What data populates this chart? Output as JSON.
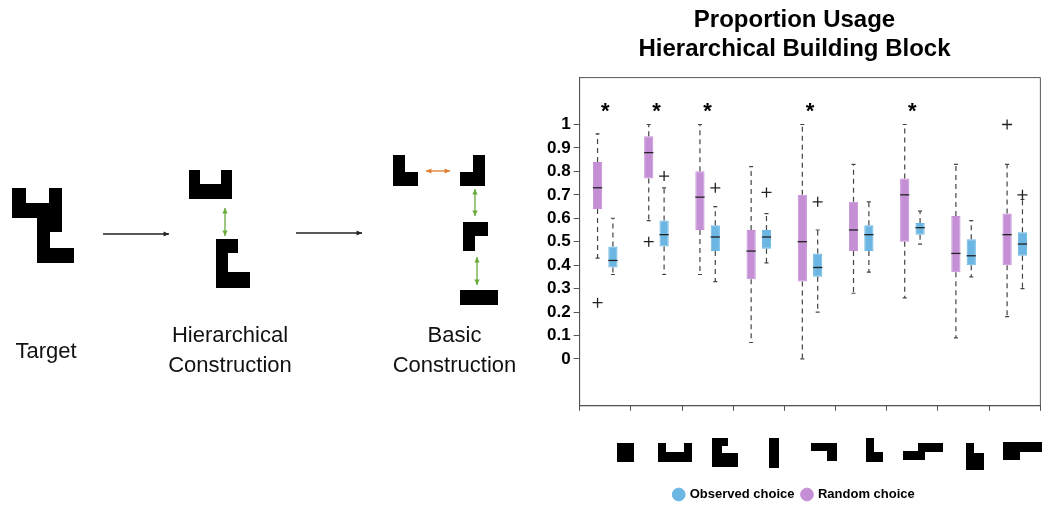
{
  "chart_data": [
    {
      "type": "other",
      "annotations": [
        "Target",
        "Hierarchical Construction",
        "Basic Construction"
      ]
    },
    {
      "type": "box",
      "title": "Proportion Usage\nHierarchical Building Block",
      "categories": [
        null,
        null,
        null,
        null,
        null,
        null,
        null,
        null,
        null
      ],
      "ylim": [
        -0.2,
        1.2
      ],
      "yticks": [
        0,
        0.1,
        0.2,
        0.3,
        0.4,
        0.5,
        0.6,
        0.7,
        0.8,
        0.9,
        1
      ],
      "legend": "bottom",
      "annotations": [
        "*",
        "*",
        "*",
        "*",
        "*"
      ],
      "series": [
        {
          "name": "Observed choice",
          "color": "#6cb6e3",
          "boxes": [
            {
              "low": 0.36,
              "q1": 0.39,
              "median": 0.42,
              "q3": 0.48,
              "high": 0.6
            },
            {
              "low": 0.36,
              "q1": 0.48,
              "median": 0.53,
              "q3": 0.59,
              "high": 0.73,
              "outliers": [
                0.78
              ]
            },
            {
              "low": 0.33,
              "q1": 0.46,
              "median": 0.52,
              "q3": 0.57,
              "high": 0.65,
              "outliers": [
                0.73
              ]
            },
            {
              "low": 0.41,
              "q1": 0.47,
              "median": 0.52,
              "q3": 0.55,
              "high": 0.62,
              "outliers": [
                0.71
              ]
            },
            {
              "low": 0.2,
              "q1": 0.35,
              "median": 0.39,
              "q3": 0.45,
              "high": 0.55,
              "outliers": [
                0.67
              ]
            },
            {
              "low": 0.37,
              "q1": 0.46,
              "median": 0.53,
              "q3": 0.57,
              "high": 0.67
            },
            {
              "low": 0.49,
              "q1": 0.53,
              "median": 0.56,
              "q3": 0.58,
              "high": 0.63
            },
            {
              "low": 0.35,
              "q1": 0.4,
              "median": 0.44,
              "q3": 0.51,
              "high": 0.59
            },
            {
              "low": 0.3,
              "q1": 0.44,
              "median": 0.49,
              "q3": 0.54,
              "high": 0.68,
              "outliers": [
                0.7
              ]
            }
          ]
        },
        {
          "name": "Random choice",
          "color": "#c58fd6",
          "boxes": [
            {
              "low": 0.43,
              "q1": 0.64,
              "median": 0.73,
              "q3": 0.84,
              "high": 0.96,
              "outliers": [
                0.24
              ]
            },
            {
              "low": 0.59,
              "q1": 0.77,
              "median": 0.88,
              "q3": 0.95,
              "high": 1.0,
              "outliers": [
                0.5
              ]
            },
            {
              "low": 0.36,
              "q1": 0.55,
              "median": 0.69,
              "q3": 0.8,
              "high": 1.0
            },
            {
              "low": 0.07,
              "q1": 0.34,
              "median": 0.46,
              "q3": 0.55,
              "high": 0.82
            },
            {
              "low": 0.0,
              "q1": 0.33,
              "median": 0.5,
              "q3": 0.7,
              "high": 1.0
            },
            {
              "low": 0.28,
              "q1": 0.46,
              "median": 0.55,
              "q3": 0.67,
              "high": 0.83
            },
            {
              "low": 0.26,
              "q1": 0.5,
              "median": 0.7,
              "q3": 0.77,
              "high": 1.0
            },
            {
              "low": 0.09,
              "q1": 0.37,
              "median": 0.45,
              "q3": 0.61,
              "high": 0.83
            },
            {
              "low": 0.18,
              "q1": 0.4,
              "median": 0.53,
              "q3": 0.62,
              "high": 0.83,
              "outliers": [
                1.0
              ]
            }
          ]
        }
      ]
    }
  ]
}
